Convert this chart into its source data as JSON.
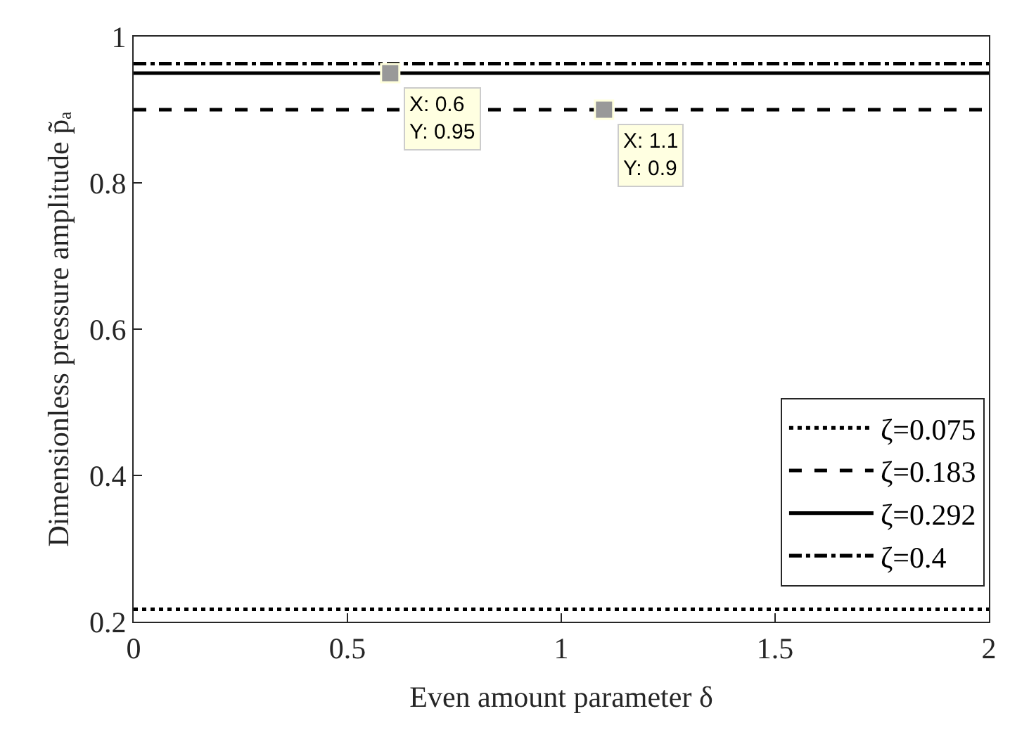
{
  "chart_data": {
    "type": "line",
    "xlabel": "Even amount parameter δ",
    "ylabel": "Dimensionless pressure amplitude p̃ₐ",
    "x": [
      0,
      2
    ],
    "series": [
      {
        "name": "ζ=0.075",
        "color": "#000000",
        "line_style": "dotted",
        "values": [
          0.217,
          0.217
        ]
      },
      {
        "name": "ζ=0.183",
        "color": "#000000",
        "line_style": "dashed",
        "values": [
          0.9,
          0.9
        ]
      },
      {
        "name": "ζ=0.292",
        "color": "#000000",
        "line_style": "solid",
        "values": [
          0.95,
          0.95
        ]
      },
      {
        "name": "ζ=0.4",
        "color": "#000000",
        "line_style": "dashdot",
        "values": [
          0.963,
          0.963
        ]
      }
    ],
    "xlim": [
      0,
      2
    ],
    "xticks": [
      0,
      0.5,
      1,
      1.5,
      2
    ],
    "ylim": [
      0.2,
      1
    ],
    "yticks": [
      0.2,
      0.4,
      0.6,
      0.8,
      1
    ],
    "legend": "bottom right",
    "marker": "none",
    "annotations": [
      {
        "text": "X: 0.6\nY: 0.95",
        "x": 0.6,
        "y": 0.95
      },
      {
        "text": "X: 1.1\nY: 0.9",
        "x": 1.1,
        "y": 0.9
      }
    ]
  }
}
